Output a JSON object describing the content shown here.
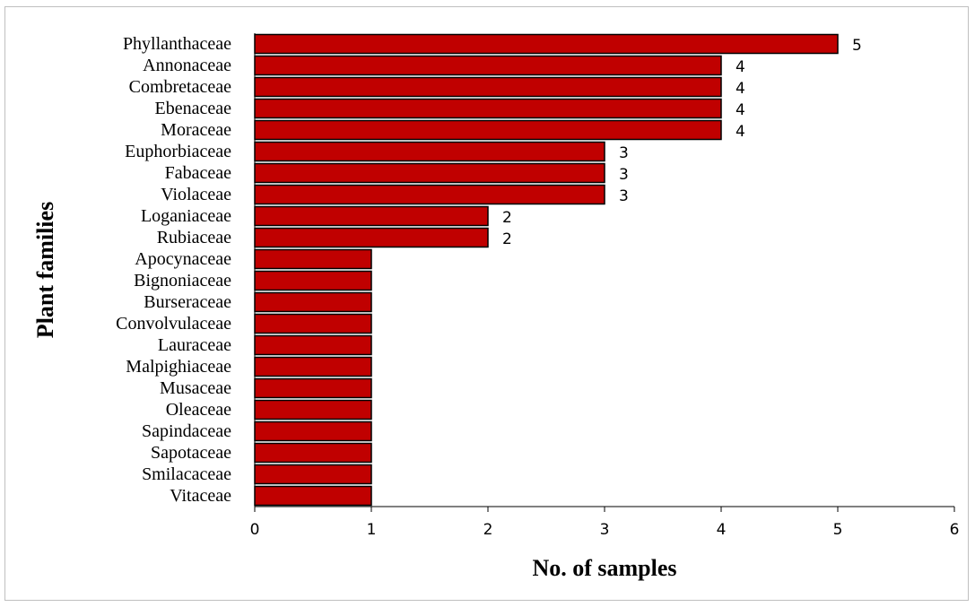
{
  "chart_data": {
    "type": "bar",
    "orientation": "horizontal",
    "categories": [
      "Phyllanthaceae",
      "Annonaceae",
      "Combretaceae",
      "Ebenaceae",
      "Moraceae",
      "Euphorbiaceae",
      "Fabaceae",
      "Violaceae",
      "Loganiaceae",
      "Rubiaceae",
      "Apocynaceae",
      "Bignoniaceae",
      "Burseraceae",
      "Convolvulaceae",
      "Lauraceae",
      "Malpighiaceae",
      "Musaceae",
      "Oleaceae",
      "Sapindaceae",
      "Sapotaceae",
      "Smilacaceae",
      "Vitaceae"
    ],
    "values": [
      5,
      4,
      4,
      4,
      4,
      3,
      3,
      3,
      2,
      2,
      1,
      1,
      1,
      1,
      1,
      1,
      1,
      1,
      1,
      1,
      1,
      1
    ],
    "data_labels": [
      "5",
      "4",
      "4",
      "4",
      "4",
      "3",
      "3",
      "3",
      "2",
      "2",
      "",
      "",
      "",
      "",
      "",
      "",
      "",
      "",
      "",
      "",
      "",
      ""
    ],
    "title": "",
    "xlabel": "No. of samples",
    "ylabel": "Plant families",
    "xlim": [
      0,
      6
    ],
    "xticks": [
      "0",
      "1",
      "2",
      "3",
      "4",
      "5",
      "6"
    ],
    "grid": false,
    "legend": "none",
    "bar_color": "#c00000",
    "bar_edge_color": "#000000"
  }
}
